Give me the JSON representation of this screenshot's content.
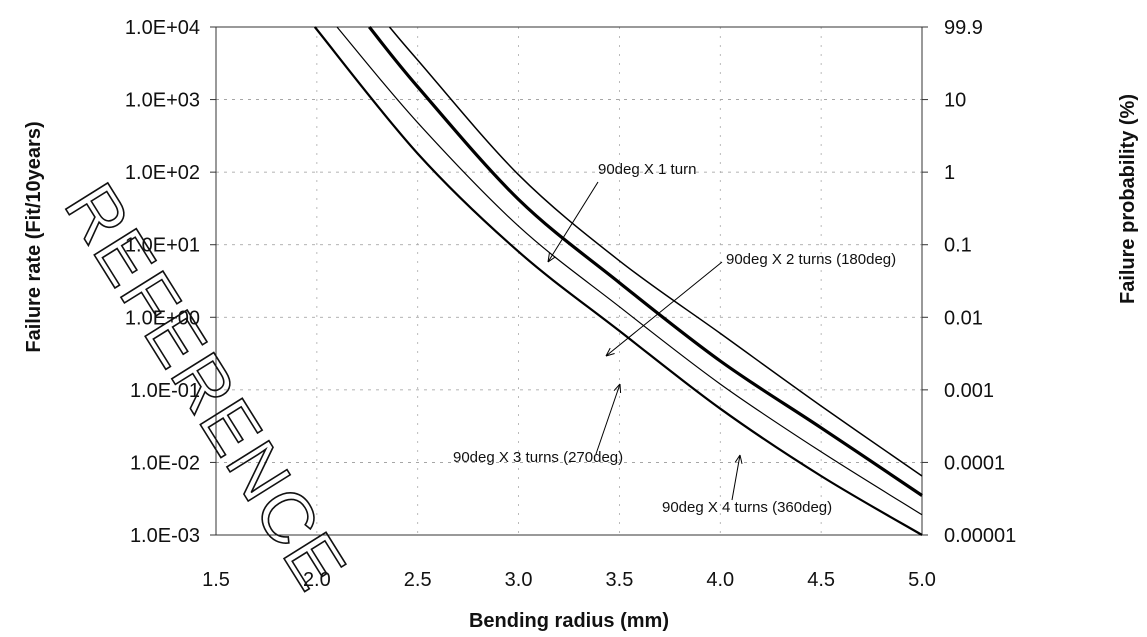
{
  "chart_data": {
    "type": "line",
    "xlabel": "Bending radius (mm)",
    "ylabel": "Failure rate (Fit/10years)",
    "ylabel_right": "Failure probability (%)",
    "xlim": [
      1.5,
      5.0
    ],
    "x_ticks": [
      "1.5",
      "2.0",
      "2.5",
      "3.0",
      "3.5",
      "4.0",
      "4.5",
      "5.0"
    ],
    "y_scale": "log",
    "ylim": [
      0.001,
      10000
    ],
    "y_ticks": [
      "1.0E+04",
      "1.0E+03",
      "1.0E+02",
      "1.0E+01",
      "1.0E+00",
      "1.0E-01",
      "1.0E-02",
      "1.0E-03"
    ],
    "y2_ticks": [
      "99.9",
      "10",
      "1",
      "0.1",
      "0.01",
      "0.001",
      "0.0001",
      "0.00001"
    ],
    "grid": "partial dashed",
    "watermark": "REFERENCE",
    "series": [
      {
        "name": "90deg X 1 turn",
        "x": [
          1.99,
          2.5,
          3.0,
          3.5,
          4.0,
          4.5,
          5.0
        ],
        "y": [
          10000,
          180,
          8,
          0.65,
          0.055,
          0.0065,
          0.001
        ]
      },
      {
        "name": "90deg X 2 turns (180deg)",
        "x": [
          2.1,
          2.5,
          3.0,
          3.5,
          4.0,
          4.5,
          5.0
        ],
        "y": [
          10000,
          480,
          18,
          1.4,
          0.12,
          0.014,
          0.0019
        ]
      },
      {
        "name": "90deg X 3 turns (270deg)",
        "x": [
          2.26,
          2.5,
          3.0,
          3.5,
          4.0,
          4.5,
          5.0
        ],
        "y": [
          10000,
          1500,
          42,
          3.0,
          0.25,
          0.03,
          0.0035
        ]
      },
      {
        "name": "90deg X 4 turns (360deg)",
        "x": [
          2.36,
          2.5,
          3.0,
          3.5,
          4.0,
          4.5,
          5.0
        ],
        "y": [
          10000,
          3500,
          92,
          6.0,
          0.6,
          0.06,
          0.0065
        ]
      }
    ],
    "annotations": [
      {
        "text": "90deg X 4 turns (360deg)",
        "series": 3
      },
      {
        "text": "90deg X 3 turns (270deg)",
        "series": 2
      },
      {
        "text": "90deg X 2 turns (180deg)",
        "series": 1
      },
      {
        "text": "90deg X 1 turn",
        "series": 0
      }
    ]
  }
}
